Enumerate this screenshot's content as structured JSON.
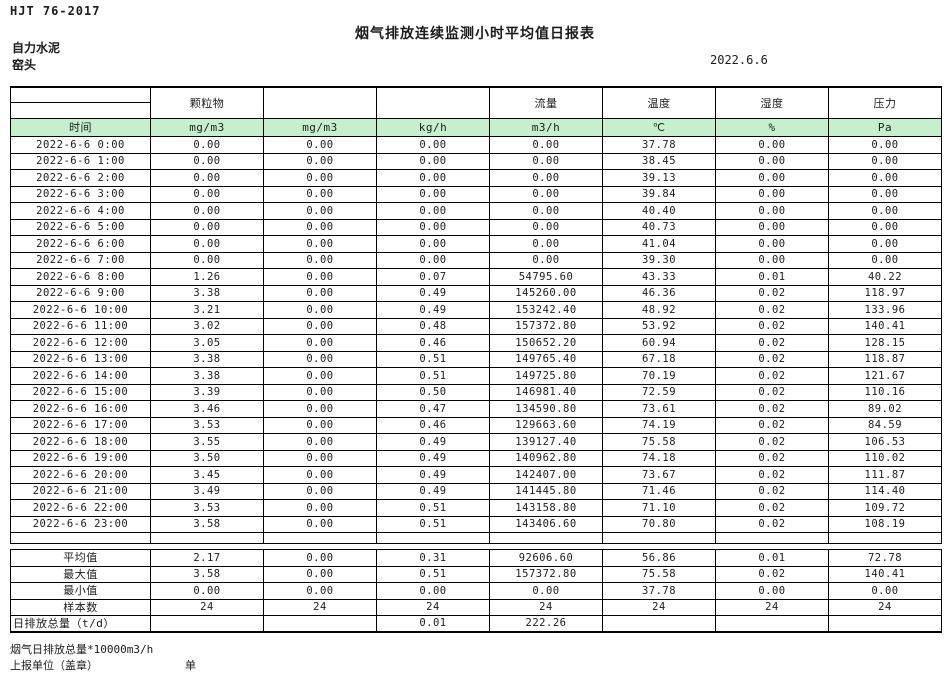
{
  "page": {
    "standard": "HJT  76-2017",
    "title": "烟气排放连续监测小时平均值日报表",
    "company": "自力水泥",
    "station": "窑头",
    "date": "2022.6.6"
  },
  "colors": {
    "header_green": "#c6efce"
  },
  "table": {
    "pollutant_headers": [
      "",
      "颗粒物",
      "",
      "",
      "流量",
      "温度",
      "湿度",
      "压力"
    ],
    "unit_row": [
      "时间",
      "mg/m3",
      "mg/m3",
      "kg/h",
      "m3/h",
      "℃",
      "%",
      "Pa"
    ],
    "rows": [
      {
        "time": "2022-6-6 0:00",
        "values": [
          "0.00",
          "0.00",
          "0.00",
          "0.00",
          "37.78",
          "0.00",
          "0.00"
        ]
      },
      {
        "time": "2022-6-6 1:00",
        "values": [
          "0.00",
          "0.00",
          "0.00",
          "0.00",
          "38.45",
          "0.00",
          "0.00"
        ]
      },
      {
        "time": "2022-6-6 2:00",
        "values": [
          "0.00",
          "0.00",
          "0.00",
          "0.00",
          "39.13",
          "0.00",
          "0.00"
        ]
      },
      {
        "time": "2022-6-6 3:00",
        "values": [
          "0.00",
          "0.00",
          "0.00",
          "0.00",
          "39.84",
          "0.00",
          "0.00"
        ]
      },
      {
        "time": "2022-6-6 4:00",
        "values": [
          "0.00",
          "0.00",
          "0.00",
          "0.00",
          "40.40",
          "0.00",
          "0.00"
        ]
      },
      {
        "time": "2022-6-6 5:00",
        "values": [
          "0.00",
          "0.00",
          "0.00",
          "0.00",
          "40.73",
          "0.00",
          "0.00"
        ]
      },
      {
        "time": "2022-6-6 6:00",
        "values": [
          "0.00",
          "0.00",
          "0.00",
          "0.00",
          "41.04",
          "0.00",
          "0.00"
        ]
      },
      {
        "time": "2022-6-6 7:00",
        "values": [
          "0.00",
          "0.00",
          "0.00",
          "0.00",
          "39.30",
          "0.00",
          "0.00"
        ]
      },
      {
        "time": "2022-6-6 8:00",
        "values": [
          "1.26",
          "0.00",
          "0.07",
          "54795.60",
          "43.33",
          "0.01",
          "40.22"
        ]
      },
      {
        "time": "2022-6-6 9:00",
        "values": [
          "3.38",
          "0.00",
          "0.49",
          "145260.00",
          "46.36",
          "0.02",
          "118.97"
        ]
      },
      {
        "time": "2022-6-6 10:00",
        "values": [
          "3.21",
          "0.00",
          "0.49",
          "153242.40",
          "48.92",
          "0.02",
          "133.96"
        ]
      },
      {
        "time": "2022-6-6 11:00",
        "values": [
          "3.02",
          "0.00",
          "0.48",
          "157372.80",
          "53.92",
          "0.02",
          "140.41"
        ]
      },
      {
        "time": "2022-6-6 12:00",
        "values": [
          "3.05",
          "0.00",
          "0.46",
          "150652.20",
          "60.94",
          "0.02",
          "128.15"
        ]
      },
      {
        "time": "2022-6-6 13:00",
        "values": [
          "3.38",
          "0.00",
          "0.51",
          "149765.40",
          "67.18",
          "0.02",
          "118.87"
        ]
      },
      {
        "time": "2022-6-6 14:00",
        "values": [
          "3.38",
          "0.00",
          "0.51",
          "149725.80",
          "70.19",
          "0.02",
          "121.67"
        ]
      },
      {
        "time": "2022-6-6 15:00",
        "values": [
          "3.39",
          "0.00",
          "0.50",
          "146981.40",
          "72.59",
          "0.02",
          "110.16"
        ]
      },
      {
        "time": "2022-6-6 16:00",
        "values": [
          "3.46",
          "0.00",
          "0.47",
          "134590.80",
          "73.61",
          "0.02",
          "89.02"
        ]
      },
      {
        "time": "2022-6-6 17:00",
        "values": [
          "3.53",
          "0.00",
          "0.46",
          "129663.60",
          "74.19",
          "0.02",
          "84.59"
        ]
      },
      {
        "time": "2022-6-6 18:00",
        "values": [
          "3.55",
          "0.00",
          "0.49",
          "139127.40",
          "75.58",
          "0.02",
          "106.53"
        ]
      },
      {
        "time": "2022-6-6 19:00",
        "values": [
          "3.50",
          "0.00",
          "0.49",
          "140962.80",
          "74.18",
          "0.02",
          "110.02"
        ]
      },
      {
        "time": "2022-6-6 20:00",
        "values": [
          "3.45",
          "0.00",
          "0.49",
          "142407.00",
          "73.67",
          "0.02",
          "111.87"
        ]
      },
      {
        "time": "2022-6-6 21:00",
        "values": [
          "3.49",
          "0.00",
          "0.49",
          "141445.80",
          "71.46",
          "0.02",
          "114.40"
        ]
      },
      {
        "time": "2022-6-6 22:00",
        "values": [
          "3.53",
          "0.00",
          "0.51",
          "143158.80",
          "71.10",
          "0.02",
          "109.72"
        ]
      },
      {
        "time": "2022-6-6 23:00",
        "values": [
          "3.58",
          "0.00",
          "0.51",
          "143406.60",
          "70.80",
          "0.02",
          "108.19"
        ]
      }
    ],
    "summary": [
      {
        "label": "平均值",
        "values": [
          "2.17",
          "0.00",
          "0.31",
          "92606.60",
          "56.86",
          "0.01",
          "72.78"
        ]
      },
      {
        "label": "最大值",
        "values": [
          "3.58",
          "0.00",
          "0.51",
          "157372.80",
          "75.58",
          "0.02",
          "140.41"
        ]
      },
      {
        "label": "最小值",
        "values": [
          "0.00",
          "0.00",
          "0.00",
          "0.00",
          "37.78",
          "0.00",
          "0.00"
        ]
      },
      {
        "label": "样本数",
        "values": [
          "24",
          "24",
          "24",
          "24",
          "24",
          "24",
          "24"
        ]
      },
      {
        "label": "日排放总量（t/d）",
        "values": [
          "",
          "",
          "0.01",
          "222.26",
          "",
          "",
          ""
        ]
      }
    ]
  },
  "footer": {
    "note": "烟气日排放总量*10000m3/h",
    "report_unit": "上报单位（盖章）",
    "unit_label": "单位"
  }
}
